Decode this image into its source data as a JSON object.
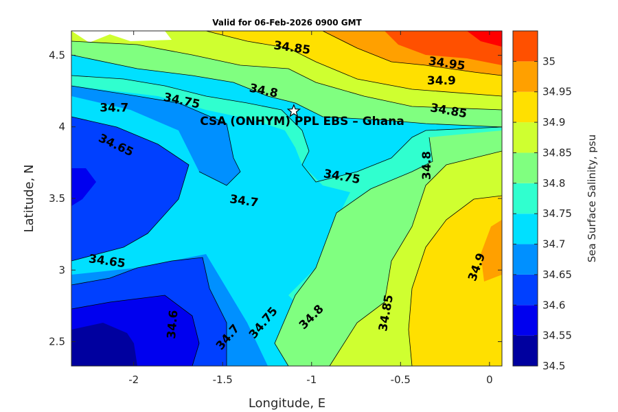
{
  "chart_data": {
    "type": "heatmap",
    "subtype": "filled-contour",
    "title": "Valid for 06-Feb-2026 0900 GMT",
    "xlabel": "Longitude, E",
    "ylabel": "Latitude, N",
    "xlim": [
      -2.35,
      0.07
    ],
    "ylim": [
      2.33,
      4.67
    ],
    "x_ticks": [
      -2,
      -1.5,
      -1,
      -0.5,
      0
    ],
    "x_tick_labels": [
      "-2",
      "-1.5",
      "-1",
      "-0.5",
      "0"
    ],
    "y_ticks": [
      2.5,
      3,
      3.5,
      4,
      4.5
    ],
    "y_tick_labels": [
      "2.5",
      "3",
      "3.5",
      "4",
      "4.5"
    ],
    "colorbar": {
      "label": "Sea Surface Salinity, psu",
      "levels": [
        34.5,
        34.55,
        34.6,
        34.65,
        34.7,
        34.75,
        34.8,
        34.85,
        34.9,
        34.95,
        35,
        35.05
      ],
      "tick_values": [
        34.5,
        34.55,
        34.6,
        34.65,
        34.7,
        34.75,
        34.8,
        34.85,
        34.9,
        34.95,
        35
      ],
      "tick_labels": [
        "34.5",
        "34.55",
        "34.6",
        "34.65",
        "34.7",
        "34.75",
        "34.8",
        "34.85",
        "34.9",
        "34.95",
        "35"
      ],
      "colors": [
        "#00009f",
        "#0000ef",
        "#0040ff",
        "#0090ff",
        "#00e0ff",
        "#30ffcf",
        "#80ff80",
        "#cfff30",
        "#ffe000",
        "#ffa000",
        "#ff5000",
        "#ff0000"
      ]
    },
    "contour_labels": [
      {
        "text": "34.85",
        "x": -1.11,
        "y": 4.55,
        "angle": 8
      },
      {
        "text": "34.95",
        "x": -0.24,
        "y": 4.44,
        "angle": 8
      },
      {
        "text": "34.9",
        "x": -0.27,
        "y": 4.32,
        "angle": 0
      },
      {
        "text": "34.8",
        "x": -1.27,
        "y": 4.25,
        "angle": 12
      },
      {
        "text": "34.75",
        "x": -1.73,
        "y": 4.18,
        "angle": 12
      },
      {
        "text": "34.85",
        "x": -0.23,
        "y": 4.11,
        "angle": 10
      },
      {
        "text": "34.7",
        "x": -2.11,
        "y": 4.13,
        "angle": 0
      },
      {
        "text": "34.65",
        "x": -2.1,
        "y": 3.87,
        "angle": 25
      },
      {
        "text": "34.8",
        "x": -0.35,
        "y": 3.73,
        "angle": -90
      },
      {
        "text": "34.75",
        "x": -0.83,
        "y": 3.65,
        "angle": 10
      },
      {
        "text": "34.7",
        "x": -1.38,
        "y": 3.48,
        "angle": 8
      },
      {
        "text": "34.65",
        "x": -2.15,
        "y": 3.06,
        "angle": 8
      },
      {
        "text": "34.9",
        "x": -0.07,
        "y": 3.02,
        "angle": -70
      },
      {
        "text": "34.6",
        "x": -1.78,
        "y": 2.62,
        "angle": -85
      },
      {
        "text": "34.7",
        "x": -1.47,
        "y": 2.53,
        "angle": -50
      },
      {
        "text": "34.75",
        "x": -1.27,
        "y": 2.63,
        "angle": -50
      },
      {
        "text": "34.8",
        "x": -1.0,
        "y": 2.67,
        "angle": -45
      },
      {
        "text": "34.85",
        "x": -0.58,
        "y": 2.7,
        "angle": -80
      }
    ],
    "site": {
      "name": "CSA (ONHYM) PPL EBS  – Ghana",
      "lon": -1.1,
      "lat": 4.11
    }
  }
}
